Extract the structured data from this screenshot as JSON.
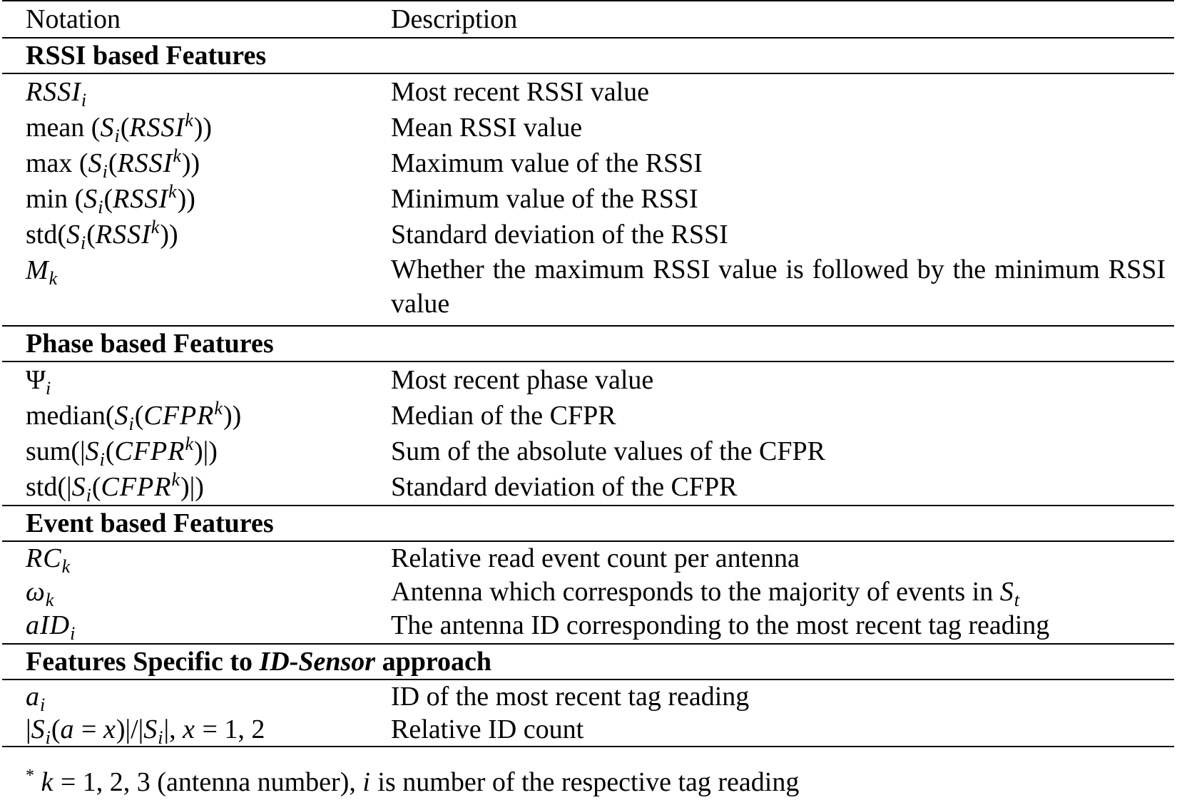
{
  "columns": {
    "notation": "Notation",
    "description": "Description"
  },
  "sections": [
    {
      "title": "RSSI based Features",
      "rows": [
        {
          "notation": "RSSIᵢ",
          "description": "Most recent RSSI value"
        },
        {
          "notation": "mean (Sᵢ(RSSIᵏ))",
          "description": "Mean RSSI value"
        },
        {
          "notation": "max (Sᵢ(RSSIᵏ))",
          "description": "Maximum value of the RSSI"
        },
        {
          "notation": "min (Sᵢ(RSSIᵏ))",
          "description": "Minimum value of the RSSI"
        },
        {
          "notation": "std(Sᵢ(RSSIᵏ))",
          "description": "Standard deviation of the RSSI"
        },
        {
          "notation": "Mₖ",
          "description": "Whether the maximum RSSI value is followed by the minimum RSSI value"
        }
      ]
    },
    {
      "title": "Phase based Features",
      "rows": [
        {
          "notation": "Ψᵢ",
          "description": "Most recent phase value"
        },
        {
          "notation": "median(Sᵢ(CFPRᵏ))",
          "description": "Median of the CFPR"
        },
        {
          "notation": "sum(|Sᵢ(CFPRᵏ)|)",
          "description": "Sum of the absolute values of the CFPR"
        },
        {
          "notation": "std(|Sᵢ(CFPRᵏ)|)",
          "description": "Standard deviation of the CFPR"
        }
      ]
    },
    {
      "title": "Event based Features",
      "rows": [
        {
          "notation": "RCₖ",
          "description": "Relative read event count per antenna"
        },
        {
          "notation": "ωₖ",
          "description": "Antenna which corresponds to the majority of events in Sₜ"
        },
        {
          "notation": "aIDᵢ",
          "description": "The antenna ID corresponding to the most recent tag reading"
        }
      ]
    },
    {
      "title_prefix": "Features Specific to ",
      "title_emph": "ID-Sensor",
      "title_suffix": " approach",
      "rows": [
        {
          "notation": "aᵢ",
          "description": "ID of the most recent tag reading"
        },
        {
          "notation": "|Sᵢ(a = x)|/|Sᵢ|, x = 1, 2",
          "description": "Relative ID count"
        }
      ]
    }
  ],
  "footnote": {
    "marker": "*",
    "text": "k = 1, 2, 3 (antenna number), i is number of the respective tag reading"
  }
}
